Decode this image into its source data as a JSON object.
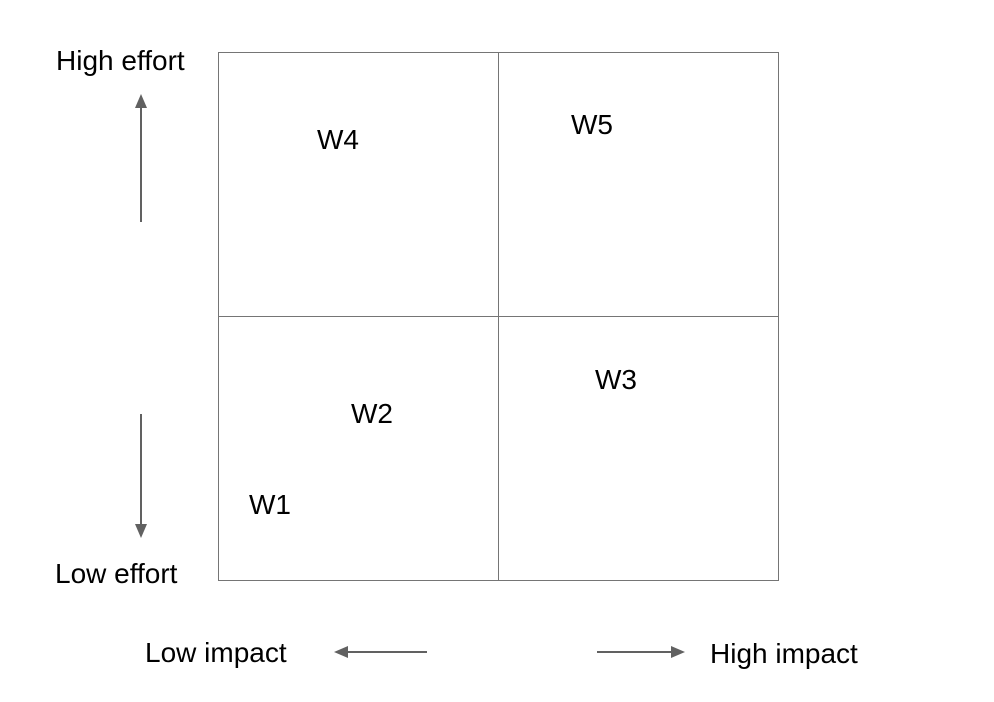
{
  "axes": {
    "y_high_label": "High effort",
    "y_low_label": "Low effort",
    "x_low_label": "Low impact",
    "x_high_label": "High impact"
  },
  "items": {
    "w1": "W1",
    "w2": "W2",
    "w3": "W3",
    "w4": "W4",
    "w5": "W5"
  },
  "colors": {
    "grid_line": "#757575",
    "arrow": "#616161",
    "text": "#000000"
  },
  "icons": {
    "up": "arrow-up-icon",
    "down": "arrow-down-icon",
    "left": "arrow-left-icon",
    "right": "arrow-right-icon"
  }
}
